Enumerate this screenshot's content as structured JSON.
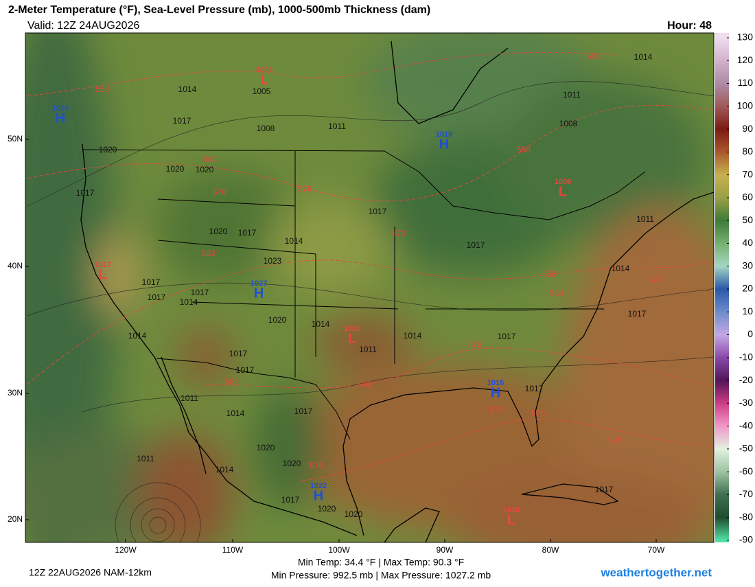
{
  "header": {
    "title": "2-Meter Temperature (°F), Sea-Level Pressure (mb), 1000-500mb Thickness (dam)",
    "valid": "Valid: 12Z 24AUG2026",
    "hour": "Hour: 48"
  },
  "map": {
    "latitude_labels": [
      "50N",
      "40N",
      "30N",
      "20N"
    ],
    "longitude_labels": [
      "120W",
      "110W",
      "100W",
      "90W",
      "80W",
      "70W"
    ],
    "pressure_centers": [
      {
        "letter": "H",
        "value": 1024,
        "color": "#1e4fd8"
      },
      {
        "letter": "L",
        "value": 1004,
        "color": "#e8463c"
      },
      {
        "letter": "H",
        "value": 1019,
        "color": "#1e4fd8"
      },
      {
        "letter": "L",
        "value": 1006,
        "color": "#e8463c"
      },
      {
        "letter": "L",
        "value": 1017,
        "color": "#e8463c"
      },
      {
        "letter": "H",
        "value": 1027,
        "color": "#1e4fd8"
      },
      {
        "letter": "L",
        "value": 1010,
        "color": "#e8463c"
      },
      {
        "letter": "H",
        "value": 1016,
        "color": "#1e4fd8"
      },
      {
        "letter": "H",
        "value": 1022,
        "color": "#1e4fd8"
      },
      {
        "letter": "L",
        "value": 1018,
        "color": "#e8463c"
      }
    ],
    "isobar_labels": [
      1014,
      1005,
      1017,
      1008,
      1011,
      1014,
      1011,
      1008,
      1020,
      1020,
      1020,
      1017,
      1017,
      1011,
      1020,
      1017,
      1014,
      1017,
      1023,
      1014,
      1017,
      1017,
      1017,
      1014,
      1020,
      1014,
      1017,
      1014,
      1014,
      1017,
      1011,
      1017,
      1017,
      1017,
      1011,
      1014,
      1017,
      1011,
      1020,
      1020,
      1014,
      1017,
      1017,
      1020,
      1020
    ],
    "thickness_labels": [
      558,
      558,
      564,
      570,
      576,
      558,
      570,
      582,
      558,
      564,
      570,
      576,
      582,
      582,
      576,
      576,
      576,
      576
    ]
  },
  "colorbar": {
    "ticks": [
      130,
      120,
      110,
      100,
      90,
      80,
      70,
      60,
      50,
      40,
      30,
      20,
      10,
      0,
      -10,
      -20,
      -30,
      -40,
      -50,
      -60,
      -70,
      -80,
      -90
    ],
    "colors": [
      "#efdcef",
      "#d2b2cc",
      "#ad8aa6",
      "#a05a5a",
      "#7c1a14",
      "#a8582c",
      "#c8b04e",
      "#9aa046",
      "#3e7a3a",
      "#74b070",
      "#a4d6c4",
      "#2a58a8",
      "#6d8cc8",
      "#c4a8e4",
      "#8a48aa",
      "#521658",
      "#cc3c84",
      "#f09ac6",
      "#e2f0e0",
      "#9ec4a2",
      "#3f7052",
      "#1f4c30",
      "#52e0a4"
    ]
  },
  "footer": {
    "model_run": "12Z 22AUG2026 NAM-12km",
    "temperature_range": "Min Temp:  34.4 °F | Max Temp:  90.3 °F",
    "pressure_range": "Min Pressure:  992.5 mb | Max Pressure:  1027.2 mb",
    "website": "weathertogether.net"
  }
}
